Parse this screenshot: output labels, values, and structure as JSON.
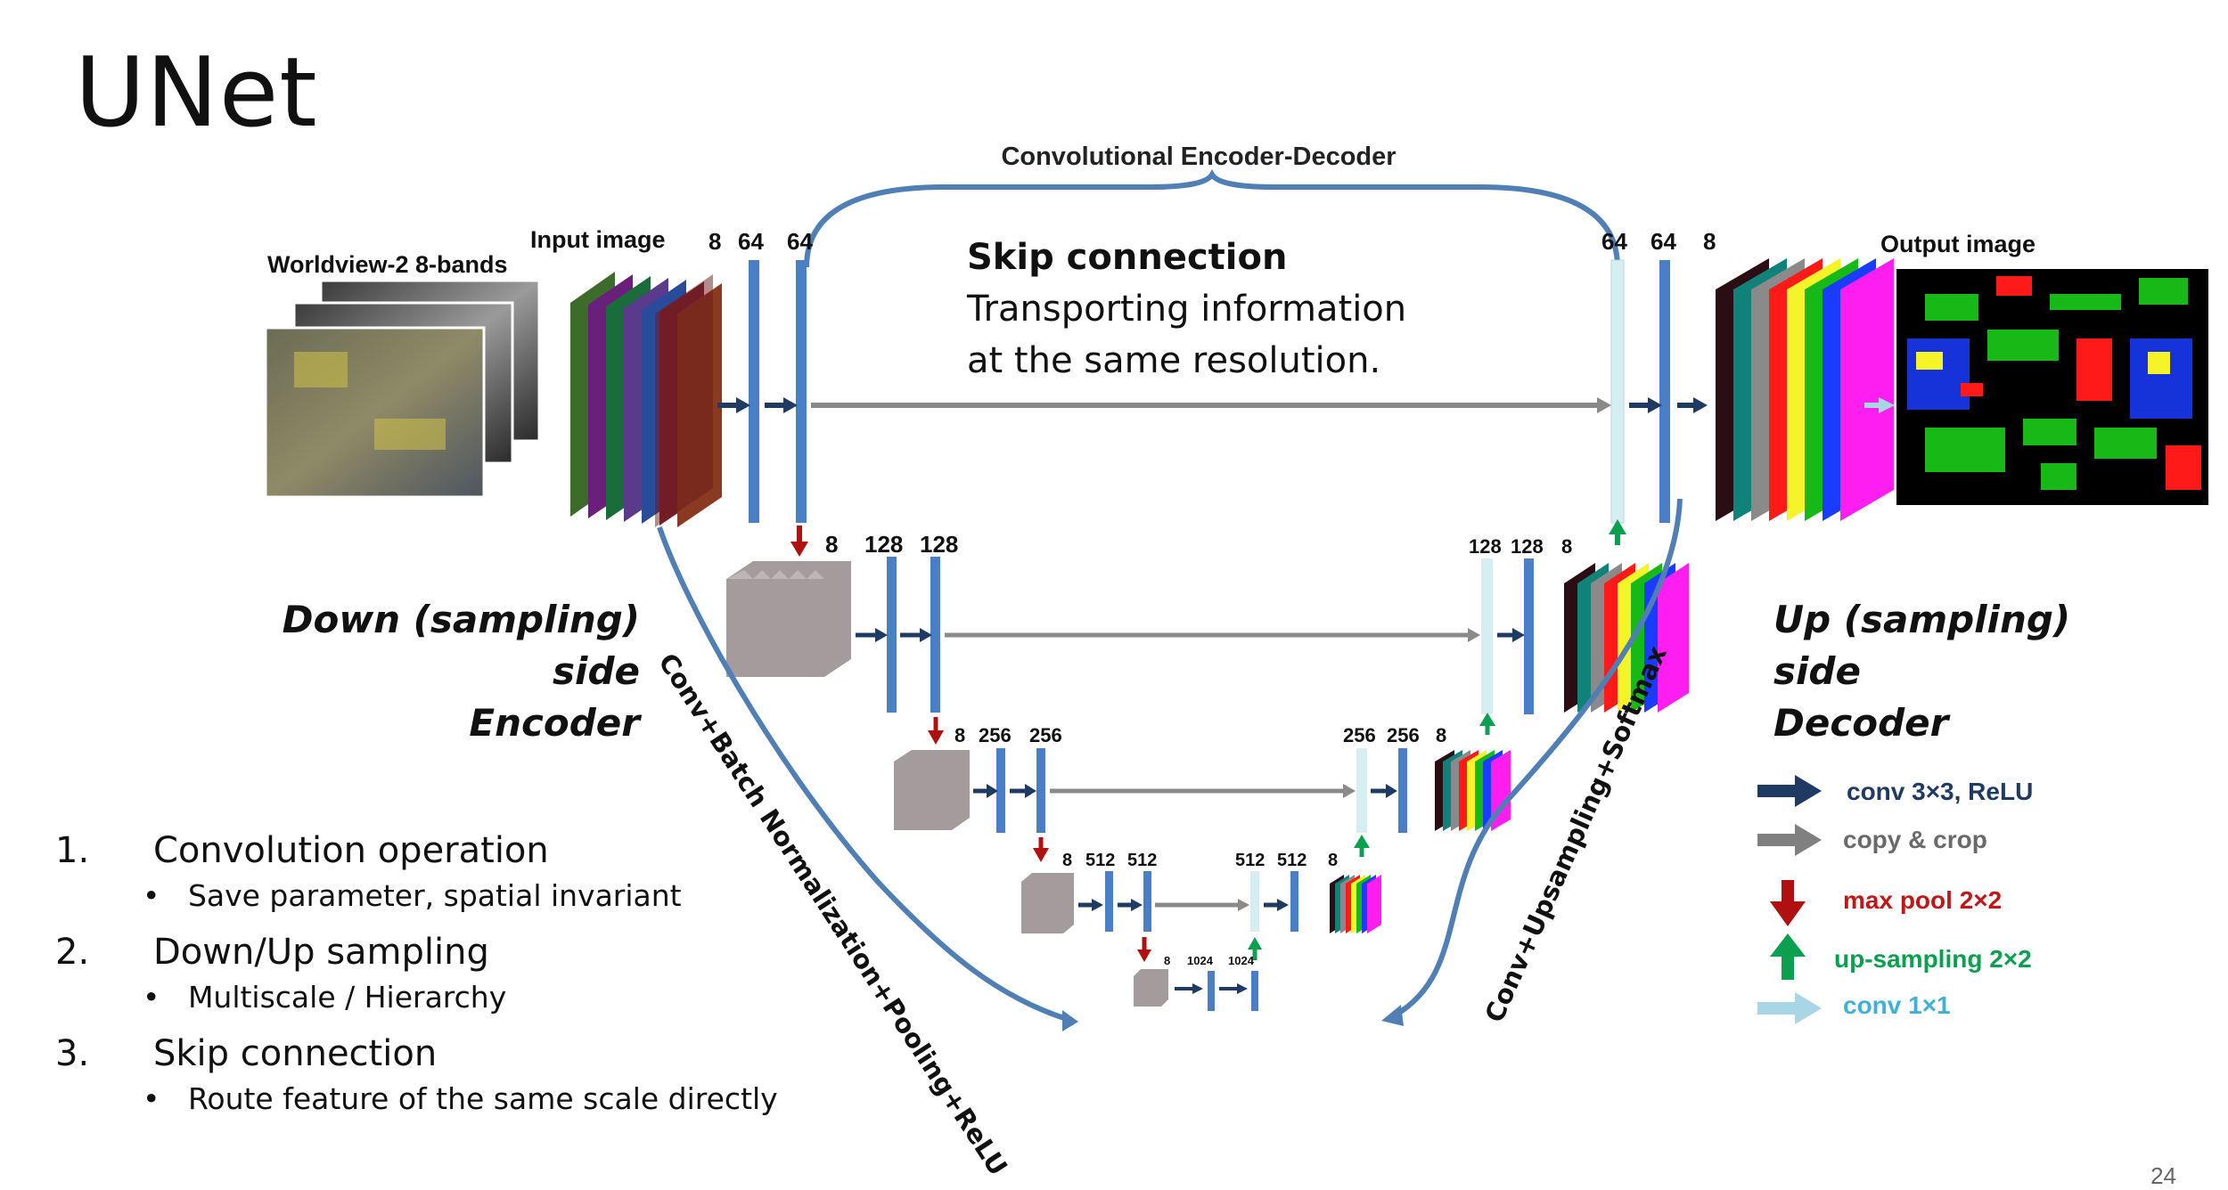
{
  "slide": {
    "title": "UNet",
    "page_number": "24"
  },
  "diagram": {
    "top_brace_label": "Convolutional Encoder-Decoder",
    "input_source_label": "Worldview-2 8-bands",
    "input_label": "Input image",
    "output_label": "Output image",
    "skip_title": "Skip connection",
    "skip_desc_line1": "Transporting information",
    "skip_desc_line2": "at the same resolution.",
    "down_line1": "Down (sampling)",
    "down_line2": "side",
    "down_line3": "Encoder",
    "up_line1": "Up (sampling)",
    "up_line2": "side",
    "up_line3": "Decoder",
    "left_curve_label": "Conv+Batch Normalization+Pooling+ReLU",
    "right_curve_label": "Conv+Upsampling+Softmax",
    "level1_enc": [
      "8",
      "64",
      "64"
    ],
    "level1_dec": [
      "64",
      "64",
      "8"
    ],
    "level2_enc": [
      "8",
      "128",
      "128"
    ],
    "level2_dec": [
      "128",
      "128",
      "8"
    ],
    "level3_enc": [
      "8",
      "256",
      "256"
    ],
    "level3_dec": [
      "256",
      "256",
      "8"
    ],
    "level4_enc": [
      "8",
      "512",
      "512"
    ],
    "level4_dec": [
      "512",
      "512",
      "8"
    ],
    "level5": [
      "8",
      "1024",
      "1024"
    ],
    "legend": [
      {
        "label": "conv 3×3, ReLU",
        "color": "#1f3b63",
        "icon": "arrow-right-icon"
      },
      {
        "label": "copy & crop",
        "color": "#808080",
        "icon": "arrow-right-icon"
      },
      {
        "label": "max pool 2×2",
        "color": "#b01010",
        "icon": "arrow-down-icon"
      },
      {
        "label": "up-sampling 2×2",
        "color": "#0aa050",
        "icon": "arrow-up-icon"
      },
      {
        "label": "conv 1×1",
        "color": "#7fc4d8",
        "icon": "arrow-right-icon"
      }
    ],
    "colors": {
      "feature_bar": "#4a7fc8",
      "skip_bar": "#d6edf2",
      "conv_arrow": "#1f3b63",
      "copy_arrow": "#8a8a8a",
      "maxpool_arrow": "#b01010",
      "upsample_arrow": "#0aa050",
      "conv1x1_arrow": "#a8d6e6",
      "curve": "#4f7fb5",
      "gray_block": "#a49c9c"
    },
    "output_class_colors": [
      "#2a0e14",
      "#11827a",
      "#8a8a8a",
      "#ff1a1a",
      "#f4f428",
      "#16b916",
      "#1a3cff",
      "#ff1ef0"
    ]
  },
  "notes": [
    {
      "number": "1.",
      "title": "Convolution operation",
      "sub": "Save parameter, spatial invariant"
    },
    {
      "number": "2.",
      "title": "Down/Up sampling",
      "sub": "Multiscale / Hierarchy"
    },
    {
      "number": "3.",
      "title": "Skip connection",
      "sub": "Route feature of the same scale directly"
    }
  ]
}
